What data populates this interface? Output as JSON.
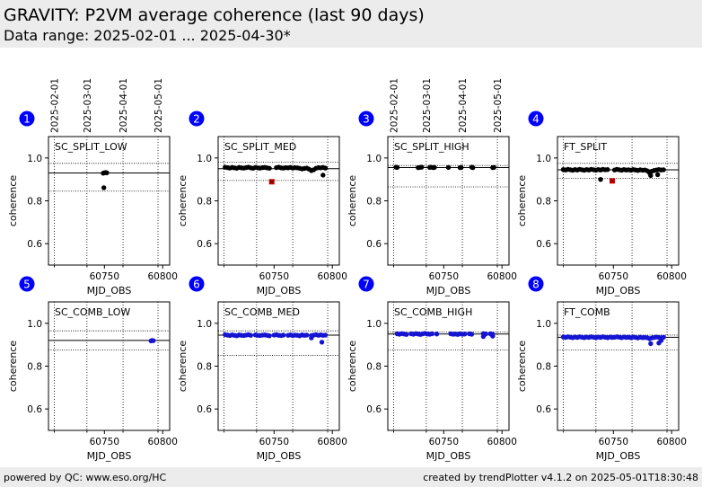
{
  "header": {
    "title": "GRAVITY: P2VM average coherence (last 90 days)",
    "subtitle": "Data range: 2025-02-01 ... 2025-04-30*"
  },
  "footer": {
    "left": "powered by QC: www.eso.org/HC",
    "right": "created by trendPlotter v4.1.2 on 2025-05-01T18:30:48"
  },
  "colors": {
    "marker_black": "#000000",
    "marker_blue": "#1414d2",
    "marker_outlier": "#e00000",
    "badge": "#0000ff"
  },
  "chart_data": [
    {
      "type": "scatter",
      "panel": 1,
      "label": "SC_SPLIT_LOW",
      "color": "black",
      "xlabel": "MJD_OBS",
      "ylabel": "coherence",
      "xlim": [
        60702,
        60806
      ],
      "ylim": [
        0.5,
        1.1
      ],
      "xticks": [
        60750,
        60800
      ],
      "yticks": [
        0.6,
        0.8,
        1.0
      ],
      "date_ticks": [
        {
          "mjd": 60707,
          "label": "2025-02-01"
        },
        {
          "mjd": 60735,
          "label": "2025-03-01"
        },
        {
          "mjd": 60766,
          "label": "2025-04-01"
        },
        {
          "mjd": 60796,
          "label": "2025-05-01"
        }
      ],
      "ref_line": 0.93,
      "limit_lines": [
        0.975,
        0.845
      ],
      "points": [
        [
          60749.0,
          0.929
        ],
        [
          60750.0,
          0.931
        ],
        [
          60751.0,
          0.932
        ],
        [
          60752.0,
          0.931
        ],
        [
          60749.5,
          0.861
        ]
      ],
      "outliers": []
    },
    {
      "type": "scatter",
      "panel": 2,
      "label": "SC_SPLIT_MED",
      "color": "black",
      "xlabel": "MJD_OBS",
      "ylabel": "coherence",
      "xlim": [
        60702,
        60806
      ],
      "ylim": [
        0.5,
        1.1
      ],
      "xticks": [
        60750,
        60800
      ],
      "yticks": [
        0.6,
        0.8,
        1.0
      ],
      "date_ticks": [],
      "ref_line": 0.95,
      "limit_lines": [
        0.98,
        0.895
      ],
      "points": [
        [
          60708,
          0.957
        ],
        [
          60710,
          0.955
        ],
        [
          60712,
          0.953
        ],
        [
          60714,
          0.956
        ],
        [
          60716,
          0.954
        ],
        [
          60718,
          0.952
        ],
        [
          60720,
          0.956
        ],
        [
          60722,
          0.954
        ],
        [
          60724,
          0.953
        ],
        [
          60726,
          0.955
        ],
        [
          60728,
          0.957
        ],
        [
          60730,
          0.954
        ],
        [
          60732,
          0.952
        ],
        [
          60734,
          0.956
        ],
        [
          60736,
          0.954
        ],
        [
          60738,
          0.953
        ],
        [
          60740,
          0.955
        ],
        [
          60742,
          0.956
        ],
        [
          60744,
          0.954
        ],
        [
          60746,
          0.952
        ],
        [
          60752,
          0.955
        ],
        [
          60754,
          0.957
        ],
        [
          60756,
          0.954
        ],
        [
          60758,
          0.953
        ],
        [
          60760,
          0.955
        ],
        [
          60762,
          0.954
        ],
        [
          60764,
          0.956
        ],
        [
          60766,
          0.953
        ],
        [
          60768,
          0.955
        ],
        [
          60770,
          0.954
        ],
        [
          60772,
          0.952
        ],
        [
          60774,
          0.949
        ],
        [
          60776,
          0.951
        ],
        [
          60778,
          0.953
        ],
        [
          60780,
          0.948
        ],
        [
          60782,
          0.941
        ],
        [
          60784,
          0.945
        ],
        [
          60786,
          0.952
        ],
        [
          60788,
          0.955
        ],
        [
          60790,
          0.954
        ],
        [
          60792,
          0.956
        ],
        [
          60794,
          0.953
        ],
        [
          60792,
          0.92
        ]
      ],
      "outliers": [
        [
          60748,
          0.889
        ]
      ]
    },
    {
      "type": "scatter",
      "panel": 3,
      "label": "SC_SPLIT_HIGH",
      "color": "black",
      "xlabel": "MJD_OBS",
      "ylabel": "coherence",
      "xlim": [
        60702,
        60806
      ],
      "ylim": [
        0.5,
        1.1
      ],
      "xticks": [
        60750,
        60800
      ],
      "yticks": [
        0.6,
        0.8,
        1.0
      ],
      "date_ticks": [
        {
          "mjd": 60707,
          "label": "2025-02-01"
        },
        {
          "mjd": 60735,
          "label": "2025-03-01"
        },
        {
          "mjd": 60766,
          "label": "2025-04-01"
        },
        {
          "mjd": 60796,
          "label": "2025-05-01"
        }
      ],
      "ref_line": 0.955,
      "limit_lines": [
        0.965,
        0.865
      ],
      "points": [
        [
          60709,
          0.957
        ],
        [
          60710,
          0.956
        ],
        [
          60728,
          0.955
        ],
        [
          60730,
          0.956
        ],
        [
          60731,
          0.957
        ],
        [
          60738,
          0.956
        ],
        [
          60739,
          0.957
        ],
        [
          60741,
          0.955
        ],
        [
          60742,
          0.956
        ],
        [
          60754,
          0.956
        ],
        [
          60764,
          0.955
        ],
        [
          60765,
          0.956
        ],
        [
          60774,
          0.957
        ],
        [
          60775,
          0.955
        ],
        [
          60792,
          0.955
        ],
        [
          60793,
          0.956
        ]
      ],
      "outliers": []
    },
    {
      "type": "scatter",
      "panel": 4,
      "label": "FT_SPLIT",
      "color": "black",
      "xlabel": "MJD_OBS",
      "ylabel": "coherence",
      "xlim": [
        60702,
        60806
      ],
      "ylim": [
        0.5,
        1.1
      ],
      "xticks": [
        60750,
        60800
      ],
      "yticks": [
        0.6,
        0.8,
        1.0
      ],
      "date_ticks": [],
      "ref_line": 0.945,
      "limit_lines": [
        0.975,
        0.905
      ],
      "points": [
        [
          60707,
          0.946
        ],
        [
          60709,
          0.944
        ],
        [
          60711,
          0.947
        ],
        [
          60713,
          0.945
        ],
        [
          60715,
          0.943
        ],
        [
          60717,
          0.946
        ],
        [
          60719,
          0.944
        ],
        [
          60721,
          0.947
        ],
        [
          60723,
          0.945
        ],
        [
          60725,
          0.943
        ],
        [
          60727,
          0.946
        ],
        [
          60729,
          0.944
        ],
        [
          60731,
          0.947
        ],
        [
          60733,
          0.945
        ],
        [
          60735,
          0.943
        ],
        [
          60737,
          0.946
        ],
        [
          60739,
          0.944
        ],
        [
          60741,
          0.947
        ],
        [
          60743,
          0.945
        ],
        [
          60745,
          0.946
        ],
        [
          60751,
          0.944
        ],
        [
          60753,
          0.947
        ],
        [
          60755,
          0.945
        ],
        [
          60757,
          0.943
        ],
        [
          60759,
          0.946
        ],
        [
          60761,
          0.944
        ],
        [
          60763,
          0.945
        ],
        [
          60765,
          0.943
        ],
        [
          60767,
          0.946
        ],
        [
          60769,
          0.944
        ],
        [
          60771,
          0.942
        ],
        [
          60773,
          0.945
        ],
        [
          60775,
          0.943
        ],
        [
          60777,
          0.944
        ],
        [
          60779,
          0.94
        ],
        [
          60781,
          0.931
        ],
        [
          60783,
          0.938
        ],
        [
          60785,
          0.942
        ],
        [
          60787,
          0.944
        ],
        [
          60789,
          0.946
        ],
        [
          60791,
          0.944
        ],
        [
          60793,
          0.945
        ],
        [
          60782,
          0.918
        ],
        [
          60788,
          0.922
        ],
        [
          60739,
          0.9
        ]
      ],
      "outliers": [
        [
          60749,
          0.893
        ]
      ]
    },
    {
      "type": "scatter",
      "panel": 5,
      "label": "SC_COMB_LOW",
      "color": "blue",
      "xlabel": "MJD_OBS",
      "ylabel": "coherence",
      "xlim": [
        60702,
        60806
      ],
      "ylim": [
        0.5,
        1.1
      ],
      "xticks": [
        60750,
        60800
      ],
      "yticks": [
        0.6,
        0.8,
        1.0
      ],
      "date_ticks": [],
      "ref_line": 0.92,
      "limit_lines": [
        0.965,
        0.875
      ],
      "points": [
        [
          60790,
          0.918
        ],
        [
          60791,
          0.92
        ],
        [
          60792,
          0.919
        ]
      ],
      "outliers": []
    },
    {
      "type": "scatter",
      "panel": 6,
      "label": "SC_COMB_MED",
      "color": "blue",
      "xlabel": "MJD_OBS",
      "ylabel": "coherence",
      "xlim": [
        60702,
        60806
      ],
      "ylim": [
        0.5,
        1.1
      ],
      "xticks": [
        60750,
        60800
      ],
      "yticks": [
        0.6,
        0.8,
        1.0
      ],
      "date_ticks": [],
      "ref_line": 0.945,
      "limit_lines": [
        0.965,
        0.85
      ],
      "points": [
        [
          60708,
          0.947
        ],
        [
          60710,
          0.945
        ],
        [
          60712,
          0.943
        ],
        [
          60714,
          0.946
        ],
        [
          60716,
          0.944
        ],
        [
          60718,
          0.942
        ],
        [
          60720,
          0.946
        ],
        [
          60722,
          0.944
        ],
        [
          60724,
          0.943
        ],
        [
          60726,
          0.945
        ],
        [
          60728,
          0.947
        ],
        [
          60730,
          0.944
        ],
        [
          60734,
          0.946
        ],
        [
          60736,
          0.944
        ],
        [
          60738,
          0.943
        ],
        [
          60740,
          0.945
        ],
        [
          60742,
          0.946
        ],
        [
          60744,
          0.944
        ],
        [
          60746,
          0.942
        ],
        [
          60750,
          0.945
        ],
        [
          60752,
          0.947
        ],
        [
          60754,
          0.944
        ],
        [
          60756,
          0.943
        ],
        [
          60758,
          0.945
        ],
        [
          60762,
          0.944
        ],
        [
          60764,
          0.946
        ],
        [
          60766,
          0.943
        ],
        [
          60768,
          0.945
        ],
        [
          60770,
          0.944
        ],
        [
          60772,
          0.942
        ],
        [
          60774,
          0.946
        ],
        [
          60776,
          0.944
        ],
        [
          60778,
          0.945
        ],
        [
          60782,
          0.943
        ],
        [
          60784,
          0.945
        ],
        [
          60786,
          0.947
        ],
        [
          60788,
          0.944
        ],
        [
          60790,
          0.946
        ],
        [
          60792,
          0.944
        ],
        [
          60794,
          0.945
        ],
        [
          60782,
          0.932
        ],
        [
          60791,
          0.912
        ]
      ],
      "outliers": []
    },
    {
      "type": "scatter",
      "panel": 7,
      "label": "SC_COMB_HIGH",
      "color": "blue",
      "xlabel": "MJD_OBS",
      "ylabel": "coherence",
      "xlim": [
        60702,
        60806
      ],
      "ylim": [
        0.5,
        1.1
      ],
      "xticks": [
        60750,
        60800
      ],
      "yticks": [
        0.6,
        0.8,
        1.0
      ],
      "date_ticks": [],
      "ref_line": 0.95,
      "limit_lines": [
        0.96,
        0.875
      ],
      "points": [
        [
          60710,
          0.951
        ],
        [
          60712,
          0.949
        ],
        [
          60714,
          0.952
        ],
        [
          60716,
          0.95
        ],
        [
          60718,
          0.948
        ],
        [
          60722,
          0.951
        ],
        [
          60724,
          0.949
        ],
        [
          60726,
          0.952
        ],
        [
          60728,
          0.95
        ],
        [
          60730,
          0.948
        ],
        [
          60732,
          0.951
        ],
        [
          60734,
          0.953
        ],
        [
          60736,
          0.95
        ],
        [
          60738,
          0.949
        ],
        [
          60740,
          0.951
        ],
        [
          60744,
          0.95
        ],
        [
          60756,
          0.951
        ],
        [
          60758,
          0.949
        ],
        [
          60760,
          0.95
        ],
        [
          60762,
          0.948
        ],
        [
          60764,
          0.951
        ],
        [
          60766,
          0.949
        ],
        [
          60768,
          0.95
        ],
        [
          60772,
          0.951
        ],
        [
          60774,
          0.949
        ],
        [
          60784,
          0.952
        ],
        [
          60786,
          0.95
        ],
        [
          60790,
          0.951
        ],
        [
          60792,
          0.949
        ],
        [
          60784,
          0.938
        ],
        [
          60792,
          0.94
        ]
      ],
      "outliers": []
    },
    {
      "type": "scatter",
      "panel": 8,
      "label": "FT_COMB",
      "color": "blue",
      "xlabel": "MJD_OBS",
      "ylabel": "coherence",
      "xlim": [
        60702,
        60806
      ],
      "ylim": [
        0.5,
        1.1
      ],
      "xticks": [
        60750,
        60800
      ],
      "yticks": [
        0.6,
        0.8,
        1.0
      ],
      "date_ticks": [],
      "ref_line": 0.935,
      "limit_lines": [
        0.945,
        0.875
      ],
      "points": [
        [
          60707,
          0.936
        ],
        [
          60709,
          0.934
        ],
        [
          60711,
          0.937
        ],
        [
          60713,
          0.935
        ],
        [
          60715,
          0.933
        ],
        [
          60717,
          0.936
        ],
        [
          60719,
          0.934
        ],
        [
          60721,
          0.937
        ],
        [
          60723,
          0.935
        ],
        [
          60725,
          0.933
        ],
        [
          60727,
          0.936
        ],
        [
          60729,
          0.934
        ],
        [
          60731,
          0.937
        ],
        [
          60733,
          0.935
        ],
        [
          60735,
          0.933
        ],
        [
          60737,
          0.936
        ],
        [
          60739,
          0.934
        ],
        [
          60741,
          0.937
        ],
        [
          60743,
          0.935
        ],
        [
          60745,
          0.933
        ],
        [
          60747,
          0.936
        ],
        [
          60749,
          0.934
        ],
        [
          60751,
          0.935
        ],
        [
          60753,
          0.937
        ],
        [
          60755,
          0.935
        ],
        [
          60757,
          0.933
        ],
        [
          60759,
          0.936
        ],
        [
          60761,
          0.934
        ],
        [
          60763,
          0.935
        ],
        [
          60765,
          0.933
        ],
        [
          60767,
          0.936
        ],
        [
          60769,
          0.934
        ],
        [
          60771,
          0.932
        ],
        [
          60773,
          0.935
        ],
        [
          60775,
          0.933
        ],
        [
          60777,
          0.934
        ],
        [
          60779,
          0.933
        ],
        [
          60781,
          0.928
        ],
        [
          60783,
          0.932
        ],
        [
          60785,
          0.934
        ],
        [
          60787,
          0.936
        ],
        [
          60789,
          0.934
        ],
        [
          60791,
          0.933
        ],
        [
          60793,
          0.935
        ],
        [
          60782,
          0.905
        ],
        [
          60789,
          0.908
        ],
        [
          60791,
          0.92
        ]
      ],
      "outliers": []
    }
  ]
}
